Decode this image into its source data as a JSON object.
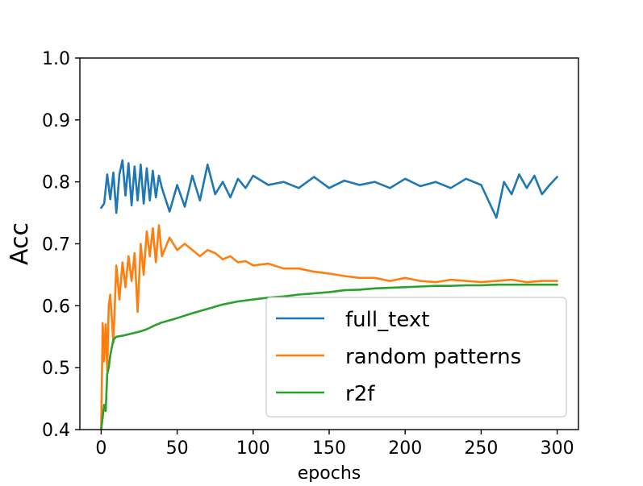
{
  "chart_data": {
    "type": "line",
    "xlabel": "epochs",
    "ylabel": "Acc",
    "xlim": [
      -14,
      314
    ],
    "ylim": [
      0.4,
      1.0
    ],
    "xticks": [
      0,
      50,
      100,
      150,
      200,
      250,
      300
    ],
    "xtick_labels": [
      "0",
      "50",
      "100",
      "150",
      "200",
      "250",
      "300"
    ],
    "yticks": [
      0.4,
      0.5,
      0.6,
      0.7,
      0.8,
      0.9,
      1.0
    ],
    "ytick_labels": [
      "0.4",
      "0.5",
      "0.6",
      "0.7",
      "0.8",
      "0.9",
      "1.0"
    ],
    "grid": false,
    "legend_position": "lower-right",
    "series": [
      {
        "name": "full_text",
        "color": "#1f77b4",
        "x": [
          0,
          2,
          4,
          6,
          8,
          10,
          12,
          14,
          16,
          18,
          20,
          22,
          24,
          26,
          28,
          30,
          32,
          34,
          36,
          38,
          40,
          45,
          50,
          55,
          60,
          65,
          70,
          75,
          80,
          85,
          90,
          95,
          100,
          110,
          120,
          130,
          140,
          150,
          160,
          170,
          180,
          190,
          200,
          210,
          220,
          230,
          240,
          250,
          260,
          265,
          270,
          275,
          280,
          285,
          290,
          295,
          300
        ],
        "y": [
          0.758,
          0.765,
          0.812,
          0.772,
          0.815,
          0.75,
          0.812,
          0.835,
          0.778,
          0.83,
          0.762,
          0.825,
          0.77,
          0.828,
          0.765,
          0.822,
          0.77,
          0.818,
          0.775,
          0.81,
          0.79,
          0.752,
          0.795,
          0.76,
          0.81,
          0.77,
          0.828,
          0.78,
          0.8,
          0.775,
          0.805,
          0.79,
          0.81,
          0.795,
          0.8,
          0.79,
          0.808,
          0.79,
          0.802,
          0.795,
          0.8,
          0.79,
          0.805,
          0.793,
          0.8,
          0.79,
          0.805,
          0.795,
          0.742,
          0.8,
          0.78,
          0.812,
          0.79,
          0.81,
          0.78,
          0.795,
          0.808
        ]
      },
      {
        "name": "random patterns",
        "color": "#ff7f0e",
        "x": [
          0,
          1,
          2,
          3,
          4,
          5,
          6,
          8,
          10,
          12,
          14,
          16,
          18,
          20,
          22,
          24,
          26,
          28,
          30,
          32,
          34,
          36,
          38,
          40,
          45,
          50,
          55,
          60,
          65,
          70,
          75,
          80,
          85,
          90,
          95,
          100,
          110,
          120,
          130,
          140,
          150,
          160,
          170,
          180,
          190,
          200,
          210,
          220,
          230,
          240,
          250,
          260,
          270,
          280,
          290,
          300
        ],
        "y": [
          0.4,
          0.572,
          0.51,
          0.57,
          0.495,
          0.6,
          0.618,
          0.54,
          0.665,
          0.61,
          0.67,
          0.63,
          0.68,
          0.64,
          0.685,
          0.59,
          0.7,
          0.65,
          0.72,
          0.68,
          0.725,
          0.67,
          0.73,
          0.68,
          0.71,
          0.69,
          0.7,
          0.69,
          0.68,
          0.69,
          0.685,
          0.675,
          0.68,
          0.67,
          0.672,
          0.665,
          0.668,
          0.66,
          0.66,
          0.655,
          0.652,
          0.648,
          0.645,
          0.645,
          0.64,
          0.645,
          0.64,
          0.638,
          0.642,
          0.64,
          0.638,
          0.64,
          0.642,
          0.638,
          0.64,
          0.64
        ]
      },
      {
        "name": "r2f",
        "color": "#2ca02c",
        "x": [
          0,
          1,
          2,
          3,
          4,
          5,
          6,
          8,
          10,
          15,
          20,
          25,
          30,
          35,
          40,
          50,
          60,
          70,
          80,
          90,
          100,
          110,
          120,
          130,
          140,
          150,
          160,
          170,
          180,
          190,
          200,
          210,
          220,
          230,
          240,
          250,
          260,
          270,
          280,
          290,
          300
        ],
        "y": [
          0.4,
          0.42,
          0.44,
          0.43,
          0.49,
          0.5,
          0.52,
          0.545,
          0.55,
          0.552,
          0.555,
          0.558,
          0.562,
          0.568,
          0.573,
          0.58,
          0.588,
          0.595,
          0.602,
          0.607,
          0.61,
          0.613,
          0.615,
          0.618,
          0.62,
          0.622,
          0.625,
          0.626,
          0.628,
          0.629,
          0.63,
          0.631,
          0.632,
          0.632,
          0.633,
          0.633,
          0.634,
          0.634,
          0.634,
          0.634,
          0.634
        ]
      }
    ]
  }
}
